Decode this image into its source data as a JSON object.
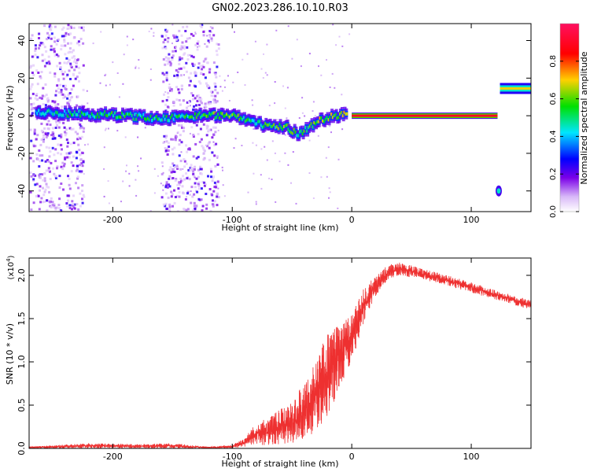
{
  "figure_title": "GN02.2023.286.10.10.R03",
  "chart_data": [
    {
      "type": "heatmap",
      "title": "",
      "xlabel": "Height of straight line (km)",
      "ylabel": "Frequency (Hz)",
      "xlim": [
        -270,
        150
      ],
      "ylim": [
        -51,
        49
      ],
      "xticks": [
        -200,
        -100,
        0,
        100
      ],
      "yticks": [
        -40,
        -20,
        0,
        20,
        40
      ],
      "colorbar": {
        "label": "Normalized spectral amplitude",
        "range": [
          0,
          1
        ],
        "ticks": [
          0.0,
          0.2,
          0.4,
          0.6,
          0.8
        ],
        "colors": [
          "#ffffff",
          "#7a00e8",
          "#0000ff",
          "#00e6ff",
          "#00e000",
          "#ffd000",
          "#ff0000",
          "#ff1060"
        ]
      },
      "features": {
        "noise_columns_km": [
          [
            -270,
            -225
          ],
          [
            -160,
            -112
          ]
        ],
        "main_band": [
          {
            "x": -265,
            "y": 1.5,
            "amp": 0.45
          },
          {
            "x": -230,
            "y": 1.0,
            "amp": 0.55
          },
          {
            "x": -200,
            "y": 0.5,
            "amp": 0.6
          },
          {
            "x": -160,
            "y": -1.5,
            "amp": 0.55
          },
          {
            "x": -130,
            "y": 0.0,
            "amp": 0.6
          },
          {
            "x": -100,
            "y": 0.5,
            "amp": 0.65
          },
          {
            "x": -85,
            "y": -3.0,
            "amp": 0.55
          },
          {
            "x": -70,
            "y": -6.0,
            "amp": 0.6
          },
          {
            "x": -55,
            "y": -6.0,
            "amp": 0.7
          },
          {
            "x": -45,
            "y": -10.0,
            "amp": 0.55
          },
          {
            "x": -30,
            "y": -3.0,
            "amp": 0.7
          },
          {
            "x": -15,
            "y": 0.0,
            "amp": 0.75
          },
          {
            "x": -5,
            "y": 1.0,
            "amp": 0.8
          }
        ],
        "steady_band": {
          "x_from": 0,
          "x_to": 122,
          "y": 0,
          "amp": 0.9
        },
        "high_band": {
          "x_from": 124,
          "x_to": 150,
          "y": 14.5,
          "amp": 0.7
        },
        "spot": {
          "x": 123,
          "y": -40,
          "amp": 0.3
        }
      }
    },
    {
      "type": "line",
      "title": "",
      "xlabel": "Height of straight line (km)",
      "ylabel": "SNR (10 * v/v)",
      "y_multiplier": "(x10",
      "y_multiplier_exp": "4",
      "y_multiplier_close": ")",
      "xlim": [
        -270,
        150
      ],
      "ylim": [
        0,
        2.2
      ],
      "xticks": [
        -200,
        -100,
        0,
        100
      ],
      "yticks": [
        0.0,
        0.5,
        1.0,
        1.5,
        2.0
      ],
      "series": [
        {
          "color": "#ee3030",
          "envelope": [
            {
              "x": -270,
              "lo": 0.0,
              "hi": 0.02
            },
            {
              "x": -220,
              "lo": 0.0,
              "hi": 0.06
            },
            {
              "x": -180,
              "lo": 0.0,
              "hi": 0.05
            },
            {
              "x": -150,
              "lo": 0.0,
              "hi": 0.06
            },
            {
              "x": -120,
              "lo": 0.0,
              "hi": 0.02
            },
            {
              "x": -100,
              "lo": 0.0,
              "hi": 0.04
            },
            {
              "x": -90,
              "lo": 0.02,
              "hi": 0.12
            },
            {
              "x": -80,
              "lo": 0.03,
              "hi": 0.3
            },
            {
              "x": -70,
              "lo": 0.04,
              "hi": 0.35
            },
            {
              "x": -60,
              "lo": 0.05,
              "hi": 0.45
            },
            {
              "x": -50,
              "lo": 0.05,
              "hi": 0.55
            },
            {
              "x": -40,
              "lo": 0.1,
              "hi": 0.75
            },
            {
              "x": -30,
              "lo": 0.2,
              "hi": 1.05
            },
            {
              "x": -20,
              "lo": 0.35,
              "hi": 1.35
            },
            {
              "x": -10,
              "lo": 0.7,
              "hi": 1.45
            },
            {
              "x": 0,
              "lo": 1.0,
              "hi": 1.55
            },
            {
              "x": 10,
              "lo": 1.45,
              "hi": 1.85
            },
            {
              "x": 20,
              "lo": 1.75,
              "hi": 2.0
            },
            {
              "x": 30,
              "lo": 1.95,
              "hi": 2.12
            },
            {
              "x": 40,
              "lo": 2.0,
              "hi": 2.15
            },
            {
              "x": 60,
              "lo": 1.95,
              "hi": 2.08
            },
            {
              "x": 80,
              "lo": 1.88,
              "hi": 2.0
            },
            {
              "x": 100,
              "lo": 1.8,
              "hi": 1.92
            },
            {
              "x": 120,
              "lo": 1.72,
              "hi": 1.83
            },
            {
              "x": 140,
              "lo": 1.64,
              "hi": 1.75
            },
            {
              "x": 150,
              "lo": 1.6,
              "hi": 1.71
            }
          ]
        }
      ]
    }
  ]
}
